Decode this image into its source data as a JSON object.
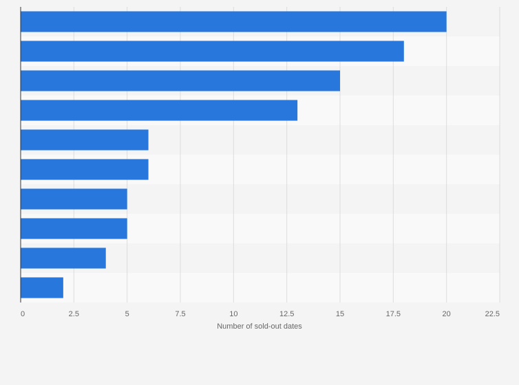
{
  "chart_data": {
    "type": "bar",
    "orientation": "horizontal",
    "categories": [
      "",
      "",
      "",
      "",
      "",
      "",
      "",
      "",
      "",
      ""
    ],
    "values": [
      20,
      18,
      15,
      13,
      6,
      6,
      5,
      5,
      4,
      2
    ],
    "xlabel": "Number of sold-out dates",
    "ylabel": "",
    "xlim": [
      0,
      22.5
    ],
    "x_ticks": [
      "0",
      "2.5",
      "5",
      "7.5",
      "10",
      "12.5",
      "15",
      "17.5",
      "20",
      "22.5"
    ],
    "grid": "vertical",
    "legend": "none",
    "colors": {
      "bar": "#2877dc",
      "band_light": "#f9f9f9",
      "band_dark": "#f4f4f4",
      "grid": "#dddddd",
      "axis": "#333333"
    }
  }
}
